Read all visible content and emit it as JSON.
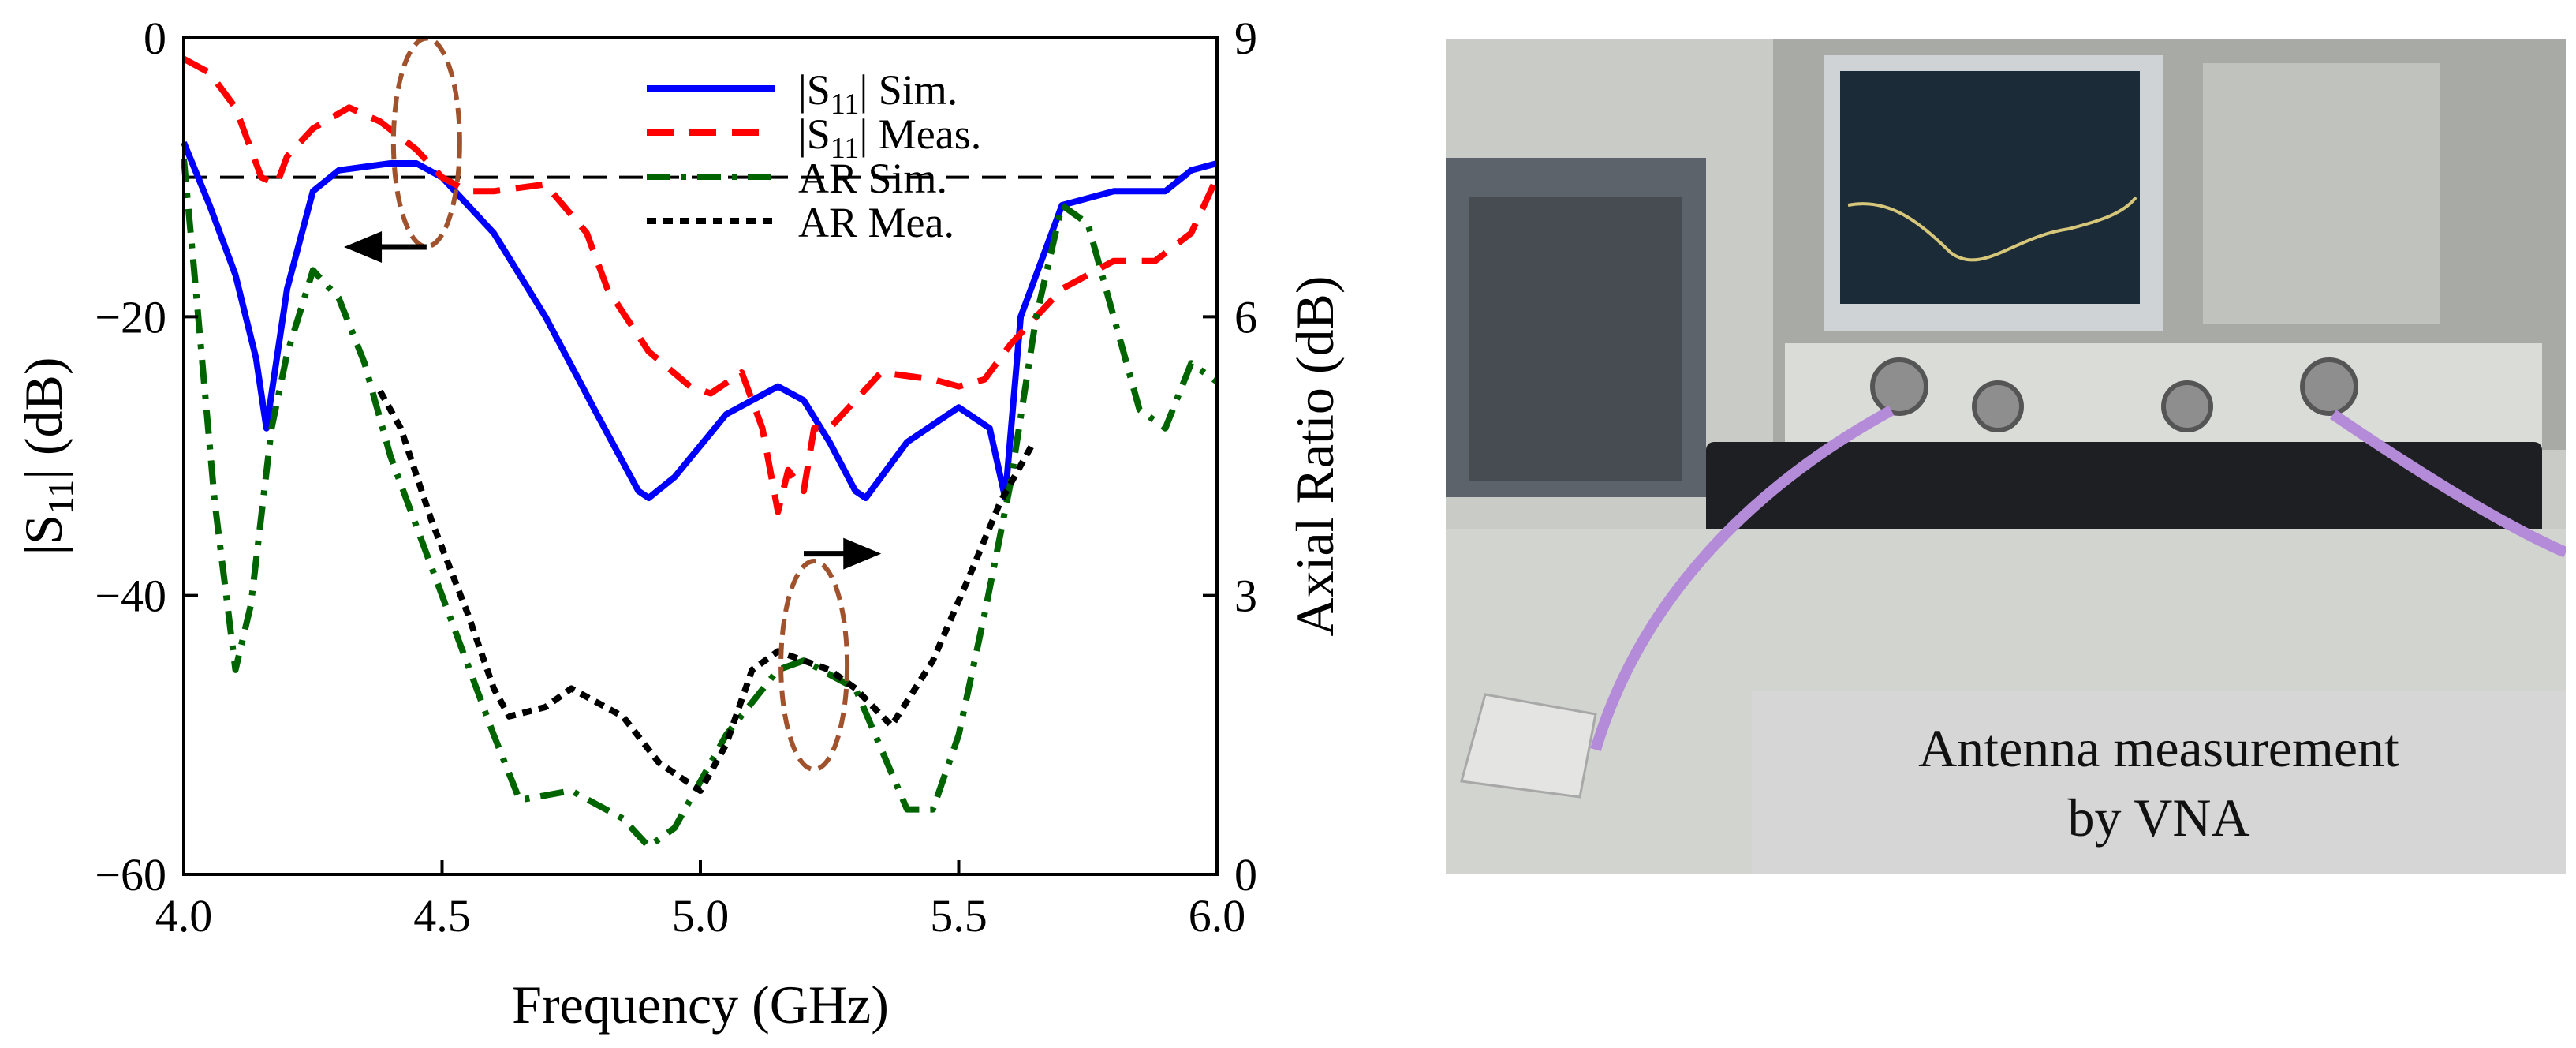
{
  "chart_data": {
    "type": "line",
    "xlabel": "Frequency (GHz)",
    "ylabel_left": "|S11| (dB)",
    "ylabel_right": "Axial Ratio (dB)",
    "xlim": [
      4.0,
      6.0
    ],
    "ylim_left": [
      -60,
      0
    ],
    "ylim_right": [
      0,
      9
    ],
    "x_ticks": [
      "4.0",
      "4.5",
      "5.0",
      "5.5",
      "6.0"
    ],
    "y_ticks_left": [
      "0",
      "−20",
      "−40",
      "−60"
    ],
    "y_ticks_right": [
      "9",
      "6",
      "3",
      "0"
    ],
    "reference_line": {
      "axis": "left",
      "value": -10,
      "style": "dashed"
    },
    "legend": [
      {
        "label": "|S11| Sim.",
        "color": "#0000ff",
        "style": "solid"
      },
      {
        "label": "|S11| Meas.",
        "color": "#ff0000",
        "style": "dashed"
      },
      {
        "label": "AR Sim.",
        "color": "#006400",
        "style": "dashdot"
      },
      {
        "label": "AR Mea.",
        "color": "#000000",
        "style": "dotted"
      }
    ],
    "series": [
      {
        "name": "|S11| Sim.",
        "axis": "left",
        "color": "#0000ff",
        "style": "solid",
        "x": [
          4.0,
          4.05,
          4.1,
          4.14,
          4.16,
          4.2,
          4.25,
          4.3,
          4.4,
          4.45,
          4.5,
          4.6,
          4.7,
          4.8,
          4.88,
          4.9,
          4.95,
          5.05,
          5.15,
          5.2,
          5.25,
          5.3,
          5.32,
          5.4,
          5.5,
          5.56,
          5.59,
          5.62,
          5.7,
          5.8,
          5.9,
          5.95,
          6.0
        ],
        "y": [
          -7.5,
          -12,
          -17,
          -23,
          -28,
          -18,
          -11,
          -9.5,
          -9,
          -9,
          -10,
          -14,
          -20,
          -27,
          -32.5,
          -33,
          -31.5,
          -27,
          -25,
          -26,
          -29,
          -32.5,
          -33,
          -29,
          -26.5,
          -28,
          -33,
          -20,
          -12,
          -11,
          -11,
          -9.5,
          -9
        ]
      },
      {
        "name": "|S11| Meas.",
        "axis": "left",
        "color": "#ff0000",
        "style": "dashed",
        "x": [
          4.0,
          4.05,
          4.1,
          4.15,
          4.18,
          4.2,
          4.25,
          4.32,
          4.38,
          4.45,
          4.5,
          4.55,
          4.6,
          4.7,
          4.78,
          4.82,
          4.9,
          4.98,
          5.02,
          5.08,
          5.12,
          5.15,
          5.17,
          5.2,
          5.22,
          5.25,
          5.3,
          5.35,
          5.45,
          5.5,
          5.55,
          5.6,
          5.7,
          5.8,
          5.88,
          5.95,
          6.0
        ],
        "y": [
          -1.5,
          -2.5,
          -5,
          -10,
          -10.5,
          -8.5,
          -6.5,
          -5,
          -6,
          -8,
          -10,
          -11,
          -11,
          -10.5,
          -14,
          -18,
          -22.5,
          -25,
          -25.5,
          -24,
          -28,
          -34,
          -31,
          -32.5,
          -28,
          -28,
          -26,
          -24,
          -24.5,
          -25,
          -24.5,
          -22,
          -18,
          -16,
          -16,
          -14,
          -10
        ]
      },
      {
        "name": "AR Sim.",
        "axis": "right",
        "color": "#006400",
        "style": "dashdot",
        "x": [
          4.0,
          4.02,
          4.06,
          4.1,
          4.13,
          4.17,
          4.2,
          4.25,
          4.3,
          4.35,
          4.4,
          4.5,
          4.6,
          4.65,
          4.75,
          4.85,
          4.9,
          4.95,
          5.05,
          5.15,
          5.2,
          5.3,
          5.4,
          5.45,
          5.5,
          5.55,
          5.6,
          5.65,
          5.7,
          5.75,
          5.8,
          5.85,
          5.9,
          5.95,
          6.0
        ],
        "y": [
          7.7,
          6.5,
          4.0,
          2.2,
          2.9,
          4.8,
          5.6,
          6.5,
          6.2,
          5.5,
          4.5,
          3.0,
          1.5,
          0.8,
          0.9,
          0.6,
          0.3,
          0.5,
          1.5,
          2.2,
          2.3,
          2.0,
          0.7,
          0.7,
          1.5,
          2.8,
          4.2,
          6.0,
          7.2,
          7.0,
          6.0,
          5.0,
          4.8,
          5.5,
          5.3
        ]
      },
      {
        "name": "AR Mea.",
        "axis": "right",
        "color": "#000000",
        "style": "dotted",
        "x": [
          4.38,
          4.42,
          4.48,
          4.55,
          4.6,
          4.63,
          4.7,
          4.75,
          4.85,
          4.92,
          5.0,
          5.05,
          5.1,
          5.15,
          5.2,
          5.25,
          5.3,
          5.37,
          5.45,
          5.52,
          5.58,
          5.62,
          5.64
        ],
        "y": [
          5.2,
          4.8,
          3.8,
          2.8,
          2.0,
          1.7,
          1.8,
          2.0,
          1.7,
          1.2,
          0.9,
          1.4,
          2.2,
          2.4,
          2.3,
          2.2,
          2.0,
          1.6,
          2.3,
          3.2,
          4.0,
          4.4,
          4.6
        ]
      }
    ],
    "annotations": [
      {
        "type": "ellipse",
        "cx": 4.47,
        "cy_left": -7.5,
        "color": "#a0522d"
      },
      {
        "type": "ellipse",
        "cx": 5.22,
        "cy_left": -45,
        "color": "#a0522d"
      },
      {
        "type": "arrow",
        "direction": "left",
        "x_from": 4.47,
        "x_to": 4.31,
        "y_left": -15
      },
      {
        "type": "arrow",
        "direction": "right",
        "x_from": 5.2,
        "x_to": 5.35,
        "y_left": -37
      }
    ]
  },
  "photo": {
    "caption_line1": "Antenna measurement",
    "caption_line2": "by VNA"
  },
  "colors": {
    "ellipse": "#a0522d",
    "frame": "#000000"
  }
}
